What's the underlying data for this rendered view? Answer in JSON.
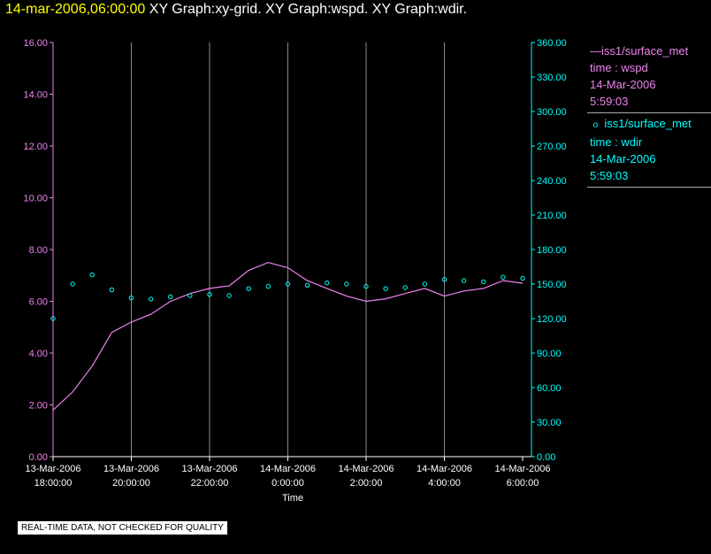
{
  "header": {
    "timestamp": "14-mar-2006,06:00:00",
    "graphs": "XY Graph:xy-grid.  XY Graph:wspd.  XY Graph:wdir."
  },
  "chart_data": {
    "type": "line",
    "xlabel": "Time",
    "x_range": [
      "13-Mar-2006 18:00:00",
      "14-Mar-2006 06:00:00"
    ],
    "x_ticks": [
      {
        "date": "13-Mar-2006",
        "time": "18:00:00"
      },
      {
        "date": "13-Mar-2006",
        "time": "20:00:00"
      },
      {
        "date": "13-Mar-2006",
        "time": "22:00:00"
      },
      {
        "date": "14-Mar-2006",
        "time": "0:00:00"
      },
      {
        "date": "14-Mar-2006",
        "time": "2:00:00"
      },
      {
        "date": "14-Mar-2006",
        "time": "4:00:00"
      },
      {
        "date": "14-Mar-2006",
        "time": "6:00:00"
      }
    ],
    "left_axis": {
      "ylim": [
        0,
        16
      ],
      "ticks": [
        "0.00",
        "2.00",
        "4.00",
        "6.00",
        "8.00",
        "10.00",
        "12.00",
        "14.00",
        "16.00"
      ],
      "color": "#ee82ee"
    },
    "right_axis": {
      "ylim": [
        0,
        360
      ],
      "ticks": [
        "0.00",
        "30.00",
        "60.00",
        "90.00",
        "120.00",
        "150.00",
        "180.00",
        "210.00",
        "240.00",
        "270.00",
        "300.00",
        "330.00",
        "360.00"
      ],
      "color": "#00ffff"
    },
    "grid": "vertical",
    "legend_position": "right",
    "series": [
      {
        "name": "iss1/surface_met",
        "legend": [
          "iss1/surface_met",
          "time : wspd",
          "14-Mar-2006",
          "5:59:03"
        ],
        "axis": "left",
        "style": "line",
        "color": "#ee82ee",
        "hours": [
          0,
          0.5,
          1,
          1.5,
          2,
          2.5,
          3,
          3.5,
          4,
          4.5,
          5,
          5.5,
          6,
          6.5,
          7,
          7.5,
          8,
          8.5,
          9,
          9.5,
          10,
          10.5,
          11,
          11.5,
          12
        ],
        "values": [
          1.8,
          2.5,
          3.5,
          4.8,
          5.2,
          5.5,
          6,
          6.3,
          6.5,
          6.6,
          7.2,
          7.5,
          7.3,
          6.8,
          6.5,
          6.2,
          6.0,
          6.1,
          6.3,
          6.5,
          6.2,
          6.4,
          6.5,
          6.8,
          6.7
        ]
      },
      {
        "name": "iss1/surface_met",
        "legend": [
          "iss1/surface_met",
          "time : wdir",
          "14-Mar-2006",
          "5:59:03"
        ],
        "axis": "right",
        "style": "points",
        "color": "#00ffff",
        "hours": [
          0,
          0.5,
          1,
          1.5,
          2,
          2.5,
          3,
          3.5,
          4,
          4.5,
          5,
          5.5,
          6,
          6.5,
          7,
          7.5,
          8,
          8.5,
          9,
          9.5,
          10,
          10.5,
          11,
          11.5,
          12
        ],
        "values": [
          120,
          150,
          158,
          145,
          138,
          137,
          139,
          140,
          141,
          140,
          146,
          148,
          150,
          149,
          151,
          150,
          148,
          146,
          147,
          150,
          154,
          153,
          152,
          156,
          155
        ]
      }
    ]
  },
  "disclaimer": "REAL-TIME DATA, NOT CHECKED FOR QUALITY"
}
